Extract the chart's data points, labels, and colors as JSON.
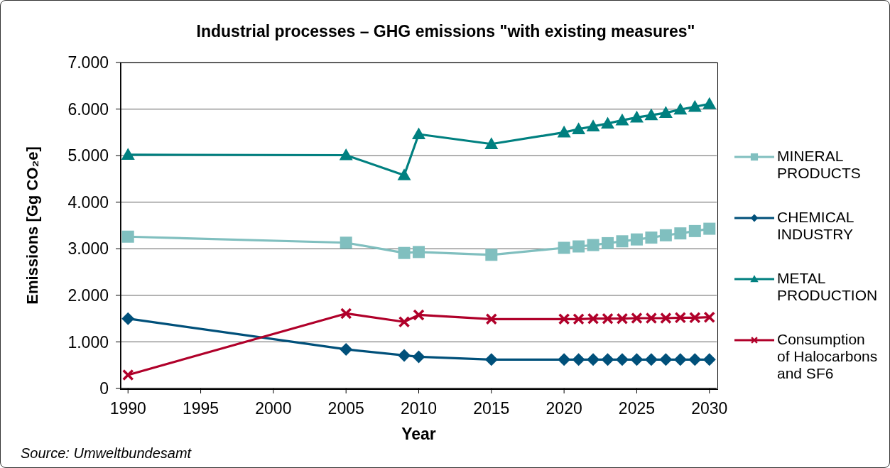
{
  "chart_data": {
    "type": "line",
    "title": "Industrial processes – GHG emissions \"with existing measures\"",
    "xlabel": "Year",
    "ylabel": "Emissions [Gg CO₂e]",
    "annotations": [
      "Source: Umweltbundesamt"
    ],
    "x": [
      1990,
      2005,
      2009,
      2010,
      2015,
      2020,
      2021,
      2022,
      2023,
      2024,
      2025,
      2026,
      2027,
      2028,
      2029,
      2030
    ],
    "series": [
      {
        "name": "MINERAL PRODUCTS",
        "color": "#80bfbf",
        "marker": "square",
        "values": [
          3260,
          3130,
          2910,
          2930,
          2870,
          3020,
          3050,
          3080,
          3120,
          3160,
          3200,
          3240,
          3290,
          3330,
          3380,
          3430
        ]
      },
      {
        "name": "CHEMICAL INDUSTRY",
        "color": "#00507a",
        "marker": "diamond",
        "values": [
          1500,
          840,
          710,
          680,
          620,
          620,
          620,
          620,
          620,
          620,
          620,
          620,
          620,
          620,
          620,
          620
        ]
      },
      {
        "name": "METAL PRODUCTION",
        "color": "#008080",
        "marker": "triangle",
        "values": [
          5020,
          5010,
          4580,
          5460,
          5250,
          5500,
          5570,
          5630,
          5690,
          5760,
          5820,
          5870,
          5920,
          5990,
          6050,
          6110
        ]
      },
      {
        "name": "Consumption of Halocarbons and SF6",
        "color": "#b0002a",
        "marker": "cross",
        "values": [
          290,
          1610,
          1430,
          1580,
          1490,
          1490,
          1490,
          1500,
          1500,
          1500,
          1510,
          1510,
          1510,
          1520,
          1520,
          1530
        ]
      }
    ],
    "xlim": [
      1989.5,
      2030.5
    ],
    "xticks": [
      1990,
      1995,
      2000,
      2005,
      2010,
      2015,
      2020,
      2025,
      2030
    ],
    "ylim": [
      0,
      7000
    ],
    "yticks": [
      0,
      {
        "value": 1000,
        "label": "1.000"
      },
      {
        "value": 2000,
        "label": "2.000"
      },
      {
        "value": 3000,
        "label": "3.000"
      },
      {
        "value": 4000,
        "label": "4.000"
      },
      {
        "value": 5000,
        "label": "5.000"
      },
      {
        "value": 6000,
        "label": "6.000"
      },
      {
        "value": 7000,
        "label": "7.000"
      }
    ],
    "grid": "y",
    "legend": "right",
    "line_style": "solid"
  }
}
